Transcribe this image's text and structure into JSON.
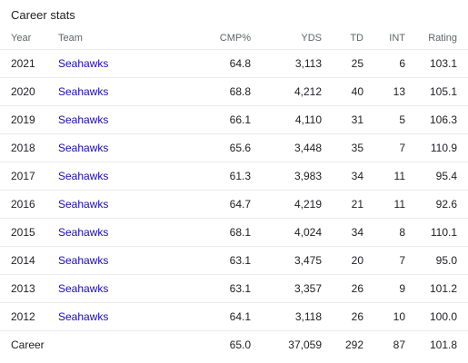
{
  "panel": {
    "title": "Career stats"
  },
  "columns": {
    "year": "Year",
    "team": "Team",
    "cmp": "CMP%",
    "yds": "YDS",
    "td": "TD",
    "int": "INT",
    "rating": "Rating"
  },
  "rows": [
    {
      "year": "2021",
      "team": "Seahawks",
      "cmp": "64.8",
      "yds": "3,113",
      "td": "25",
      "int": "6",
      "rating": "103.1"
    },
    {
      "year": "2020",
      "team": "Seahawks",
      "cmp": "68.8",
      "yds": "4,212",
      "td": "40",
      "int": "13",
      "rating": "105.1"
    },
    {
      "year": "2019",
      "team": "Seahawks",
      "cmp": "66.1",
      "yds": "4,110",
      "td": "31",
      "int": "5",
      "rating": "106.3"
    },
    {
      "year": "2018",
      "team": "Seahawks",
      "cmp": "65.6",
      "yds": "3,448",
      "td": "35",
      "int": "7",
      "rating": "110.9"
    },
    {
      "year": "2017",
      "team": "Seahawks",
      "cmp": "61.3",
      "yds": "3,983",
      "td": "34",
      "int": "11",
      "rating": "95.4"
    },
    {
      "year": "2016",
      "team": "Seahawks",
      "cmp": "64.7",
      "yds": "4,219",
      "td": "21",
      "int": "11",
      "rating": "92.6"
    },
    {
      "year": "2015",
      "team": "Seahawks",
      "cmp": "68.1",
      "yds": "4,024",
      "td": "34",
      "int": "8",
      "rating": "110.1"
    },
    {
      "year": "2014",
      "team": "Seahawks",
      "cmp": "63.1",
      "yds": "3,475",
      "td": "20",
      "int": "7",
      "rating": "95.0"
    },
    {
      "year": "2013",
      "team": "Seahawks",
      "cmp": "63.1",
      "yds": "3,357",
      "td": "26",
      "int": "9",
      "rating": "101.2"
    },
    {
      "year": "2012",
      "team": "Seahawks",
      "cmp": "64.1",
      "yds": "3,118",
      "td": "26",
      "int": "10",
      "rating": "100.0"
    }
  ],
  "career": {
    "label": "Career",
    "cmp": "65.0",
    "yds": "37,059",
    "td": "292",
    "int": "87",
    "rating": "101.8"
  },
  "colors": {
    "link": "#1a0dab",
    "text": "#202124",
    "header_text": "#5f6368",
    "divider": "#ebebeb"
  }
}
